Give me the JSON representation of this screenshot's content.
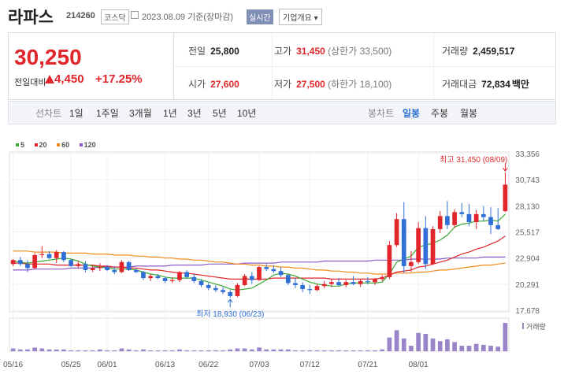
{
  "header": {
    "name": "라파스",
    "code": "214260",
    "market": "코스닥",
    "date": "2023.08.09 기준(장마감)",
    "realtime": "실시간",
    "corp_info": "기업개요"
  },
  "summary": {
    "price": "30,250",
    "change_label": "전일대비",
    "change": "4,450",
    "change_pct": "+17.25%"
  },
  "stats": {
    "prev_label": "전일",
    "prev": "25,800",
    "high_label": "고가",
    "high": "31,450",
    "high_limit": "(상한가 33,500)",
    "vol_label": "거래량",
    "vol": "2,459,517",
    "open_label": "시가",
    "open": "27,600",
    "low_label": "저가",
    "low": "27,500",
    "low_limit": "(하한가 18,100)",
    "amt_label": "거래대금",
    "amt": "72,834",
    "amt_unit": "백만"
  },
  "toolbar": {
    "line_label": "선차트",
    "periods": [
      "1일",
      "1주일",
      "3개월",
      "1년",
      "3년",
      "5년",
      "10년"
    ],
    "candle_label": "봉차트",
    "candle": [
      "일봉",
      "주봉",
      "월봉"
    ]
  },
  "legend": [
    {
      "label": "5",
      "color": "#3aa832"
    },
    {
      "label": "20",
      "color": "#e0262b"
    },
    {
      "label": "60",
      "color": "#f08c1a"
    },
    {
      "label": "120",
      "color": "#8a5cc7"
    }
  ],
  "annotations": {
    "high": "최고 31,450 (08/09)",
    "low": "최저 18,930 (06/23)",
    "volume_label": "거래량"
  },
  "chart_data": {
    "type": "candlestick",
    "y_ticks": [
      "33,356",
      "30,743",
      "28,130",
      "25,517",
      "22,904",
      "20,291",
      "17,678"
    ],
    "y_range": [
      17678,
      33356
    ],
    "x_labels": [
      "05/16",
      "05/25",
      "06/01",
      "06/13",
      "06/22",
      "07/03",
      "07/12",
      "07/21",
      "08/01"
    ],
    "candles": [
      {
        "o": 22300,
        "h": 22800,
        "l": 22100,
        "c": 22700
      },
      {
        "o": 22700,
        "h": 23000,
        "l": 22100,
        "c": 22300
      },
      {
        "o": 22300,
        "h": 22700,
        "l": 21500,
        "c": 21900
      },
      {
        "o": 21900,
        "h": 23400,
        "l": 21800,
        "c": 23200
      },
      {
        "o": 23200,
        "h": 24100,
        "l": 22900,
        "c": 23300
      },
      {
        "o": 23300,
        "h": 23600,
        "l": 22800,
        "c": 22900
      },
      {
        "o": 22900,
        "h": 23700,
        "l": 22400,
        "c": 23500
      },
      {
        "o": 23500,
        "h": 23600,
        "l": 22500,
        "c": 22700
      },
      {
        "o": 22700,
        "h": 22800,
        "l": 22000,
        "c": 22100
      },
      {
        "o": 22100,
        "h": 22600,
        "l": 21900,
        "c": 22300
      },
      {
        "o": 22300,
        "h": 22600,
        "l": 21500,
        "c": 21700
      },
      {
        "o": 21700,
        "h": 22100,
        "l": 21500,
        "c": 21900
      },
      {
        "o": 21900,
        "h": 22400,
        "l": 21600,
        "c": 22000
      },
      {
        "o": 22000,
        "h": 22200,
        "l": 21600,
        "c": 21700
      },
      {
        "o": 21700,
        "h": 22100,
        "l": 21300,
        "c": 21500
      },
      {
        "o": 21500,
        "h": 22700,
        "l": 21400,
        "c": 22500
      },
      {
        "o": 22500,
        "h": 22600,
        "l": 21600,
        "c": 21700
      },
      {
        "o": 21700,
        "h": 21900,
        "l": 21400,
        "c": 21500
      },
      {
        "o": 21500,
        "h": 21600,
        "l": 20700,
        "c": 20900
      },
      {
        "o": 20900,
        "h": 21300,
        "l": 20600,
        "c": 21100
      },
      {
        "o": 21100,
        "h": 21300,
        "l": 20800,
        "c": 20900
      },
      {
        "o": 20900,
        "h": 21000,
        "l": 20400,
        "c": 20600
      },
      {
        "o": 20600,
        "h": 21000,
        "l": 20400,
        "c": 20700
      },
      {
        "o": 20700,
        "h": 21600,
        "l": 20500,
        "c": 21500
      },
      {
        "o": 21500,
        "h": 21700,
        "l": 20900,
        "c": 21000
      },
      {
        "o": 21000,
        "h": 21300,
        "l": 20400,
        "c": 20600
      },
      {
        "o": 20600,
        "h": 20800,
        "l": 20000,
        "c": 20200
      },
      {
        "o": 20200,
        "h": 20400,
        "l": 19700,
        "c": 19900
      },
      {
        "o": 19900,
        "h": 20200,
        "l": 19500,
        "c": 19700
      },
      {
        "o": 19700,
        "h": 20000,
        "l": 19300,
        "c": 19500
      },
      {
        "o": 19500,
        "h": 19700,
        "l": 18930,
        "c": 19100
      },
      {
        "o": 19100,
        "h": 20400,
        "l": 19000,
        "c": 20200
      },
      {
        "o": 20200,
        "h": 21300,
        "l": 20100,
        "c": 21100
      },
      {
        "o": 21100,
        "h": 21500,
        "l": 20300,
        "c": 20700
      },
      {
        "o": 20700,
        "h": 22100,
        "l": 20600,
        "c": 22000
      },
      {
        "o": 22000,
        "h": 22300,
        "l": 21600,
        "c": 21800
      },
      {
        "o": 21800,
        "h": 22200,
        "l": 21400,
        "c": 21600
      },
      {
        "o": 21600,
        "h": 22000,
        "l": 21000,
        "c": 21200
      },
      {
        "o": 21200,
        "h": 21300,
        "l": 20200,
        "c": 20400
      },
      {
        "o": 20400,
        "h": 20900,
        "l": 19900,
        "c": 20200
      },
      {
        "o": 20200,
        "h": 20500,
        "l": 19500,
        "c": 19800
      },
      {
        "o": 19800,
        "h": 20200,
        "l": 19300,
        "c": 19700
      },
      {
        "o": 19700,
        "h": 20300,
        "l": 19600,
        "c": 20100
      },
      {
        "o": 20100,
        "h": 20600,
        "l": 19900,
        "c": 20300
      },
      {
        "o": 20300,
        "h": 20800,
        "l": 20000,
        "c": 20500
      },
      {
        "o": 20500,
        "h": 20900,
        "l": 20100,
        "c": 20200
      },
      {
        "o": 20200,
        "h": 20700,
        "l": 20000,
        "c": 20500
      },
      {
        "o": 20500,
        "h": 21100,
        "l": 20200,
        "c": 20300
      },
      {
        "o": 20300,
        "h": 20800,
        "l": 20000,
        "c": 20600
      },
      {
        "o": 20600,
        "h": 21000,
        "l": 20300,
        "c": 20500
      },
      {
        "o": 20500,
        "h": 20900,
        "l": 20200,
        "c": 20800
      },
      {
        "o": 20800,
        "h": 21200,
        "l": 20600,
        "c": 21000
      },
      {
        "o": 21000,
        "h": 24600,
        "l": 20800,
        "c": 24200
      },
      {
        "o": 24200,
        "h": 27400,
        "l": 24000,
        "c": 26800
      },
      {
        "o": 26800,
        "h": 28500,
        "l": 21400,
        "c": 22100
      },
      {
        "o": 22100,
        "h": 23600,
        "l": 21500,
        "c": 22500
      },
      {
        "o": 22500,
        "h": 26500,
        "l": 22300,
        "c": 25900
      },
      {
        "o": 25900,
        "h": 27100,
        "l": 21800,
        "c": 22300
      },
      {
        "o": 22300,
        "h": 26100,
        "l": 22200,
        "c": 25800
      },
      {
        "o": 25800,
        "h": 27600,
        "l": 25400,
        "c": 27100
      },
      {
        "o": 27100,
        "h": 28600,
        "l": 25800,
        "c": 26200
      },
      {
        "o": 26200,
        "h": 27800,
        "l": 25900,
        "c": 27500
      },
      {
        "o": 27500,
        "h": 28400,
        "l": 27000,
        "c": 27300
      },
      {
        "o": 27300,
        "h": 28300,
        "l": 26100,
        "c": 26500
      },
      {
        "o": 26500,
        "h": 27700,
        "l": 25800,
        "c": 27300
      },
      {
        "o": 27300,
        "h": 28100,
        "l": 26600,
        "c": 27000
      },
      {
        "o": 27000,
        "h": 28000,
        "l": 25300,
        "c": 26200
      },
      {
        "o": 26200,
        "h": 27900,
        "l": 25700,
        "c": 25800
      },
      {
        "o": 27600,
        "h": 31450,
        "l": 27500,
        "c": 30250
      }
    ],
    "ma5": [
      22600,
      22500,
      22400,
      22500,
      22600,
      22700,
      22800,
      22900,
      22800,
      22600,
      22300,
      22100,
      22000,
      21900,
      21800,
      21800,
      21800,
      21700,
      21500,
      21300,
      21200,
      21000,
      20900,
      20900,
      20900,
      20900,
      20700,
      20500,
      20300,
      20100,
      19800,
      19700,
      19800,
      19900,
      20300,
      20700,
      21200,
      21400,
      21300,
      21100,
      20800,
      20500,
      20300,
      20200,
      20100,
      20100,
      20300,
      20400,
      20400,
      20400,
      20400,
      20500,
      21300,
      22500,
      22800,
      23100,
      24000,
      24200,
      24400,
      24700,
      25200,
      26000,
      26300,
      26400,
      26600,
      26600,
      26700,
      26600,
      27300
    ],
    "ma20": [
      22400,
      22400,
      22300,
      22300,
      22300,
      22300,
      22200,
      22200,
      22200,
      22200,
      22200,
      22200,
      22100,
      22100,
      22000,
      22000,
      21900,
      21900,
      21800,
      21700,
      21700,
      21600,
      21500,
      21400,
      21400,
      21300,
      21200,
      21100,
      21000,
      20900,
      20800,
      20800,
      20800,
      20800,
      20800,
      20800,
      20900,
      20900,
      20900,
      20900,
      20900,
      20900,
      20900,
      20900,
      20800,
      20800,
      20800,
      20800,
      20800,
      20800,
      20800,
      20900,
      21200,
      21500,
      21600,
      21700,
      22000,
      22100,
      22300,
      22500,
      22700,
      23000,
      23300,
      23500,
      23800,
      24000,
      24300,
      24600,
      25100
    ],
    "ma60": [
      23600,
      23600,
      23600,
      23500,
      23500,
      23500,
      23500,
      23400,
      23400,
      23400,
      23400,
      23300,
      23300,
      23300,
      23200,
      23200,
      23200,
      23100,
      23100,
      23000,
      23000,
      22900,
      22900,
      22800,
      22800,
      22700,
      22700,
      22600,
      22500,
      22500,
      22400,
      22300,
      22300,
      22200,
      22200,
      22100,
      22100,
      22000,
      22000,
      21900,
      21900,
      21800,
      21700,
      21700,
      21600,
      21600,
      21500,
      21500,
      21400,
      21400,
      21300,
      21300,
      21300,
      21400,
      21400,
      21400,
      21500,
      21500,
      21600,
      21700,
      21700,
      21800,
      21900,
      22000,
      22100,
      22200,
      22200,
      22300,
      22400
    ],
    "ma120": [
      21700,
      21700,
      21700,
      21800,
      21800,
      21800,
      21800,
      21800,
      21900,
      21900,
      21900,
      21900,
      22000,
      22000,
      22000,
      22000,
      22000,
      22100,
      22100,
      22100,
      22100,
      22100,
      22200,
      22200,
      22200,
      22200,
      22200,
      22300,
      22300,
      22300,
      22300,
      22300,
      22400,
      22400,
      22400,
      22400,
      22400,
      22500,
      22500,
      22500,
      22500,
      22500,
      22500,
      22600,
      22600,
      22600,
      22600,
      22600,
      22600,
      22600,
      22700,
      22700,
      22700,
      22700,
      22700,
      22800,
      22800,
      22800,
      22800,
      22800,
      22900,
      22900,
      22900,
      22900,
      22900,
      23000,
      23000,
      23000,
      23000
    ],
    "volume": [
      0.03,
      0.02,
      0.02,
      0.04,
      0.03,
      0.02,
      0.02,
      0.02,
      0.01,
      0.01,
      0.01,
      0.01,
      0.02,
      0.01,
      0.01,
      0.03,
      0.02,
      0.01,
      0.02,
      0.01,
      0.01,
      0.01,
      0.01,
      0.02,
      0.01,
      0.01,
      0.01,
      0.01,
      0.01,
      0.01,
      0.02,
      0.03,
      0.03,
      0.02,
      0.04,
      0.02,
      0.02,
      0.02,
      0.02,
      0.01,
      0.01,
      0.01,
      0.01,
      0.01,
      0.01,
      0.01,
      0.01,
      0.01,
      0.01,
      0.01,
      0.01,
      0.02,
      0.15,
      0.23,
      0.14,
      0.06,
      0.2,
      0.19,
      0.14,
      0.11,
      0.13,
      0.1,
      0.06,
      0.06,
      0.08,
      0.07,
      0.06,
      0.05,
      0.31
    ]
  }
}
